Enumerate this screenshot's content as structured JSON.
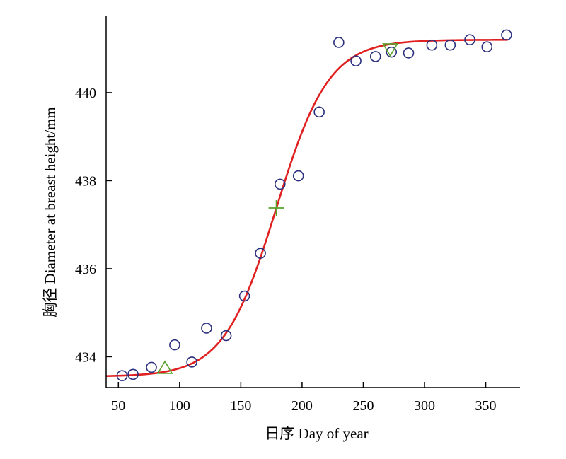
{
  "chart_data": {
    "type": "scatter",
    "xlabel": "日序 Day of year",
    "ylabel": "胸径 Diameter at breast height/mm",
    "xlim": [
      40,
      378
    ],
    "ylim": [
      433.3,
      441.75
    ],
    "xticks": [
      50,
      100,
      150,
      200,
      250,
      300,
      350
    ],
    "yticks": [
      434,
      436,
      438,
      440
    ],
    "grid": false,
    "legend": "none",
    "series": [
      {
        "kind": "scatter",
        "marker": "circle",
        "color": "#2b2f7e",
        "points": [
          {
            "x": 53,
            "y": 433.57
          },
          {
            "x": 62,
            "y": 433.6
          },
          {
            "x": 77,
            "y": 433.76
          },
          {
            "x": 96,
            "y": 434.27
          },
          {
            "x": 110,
            "y": 433.88
          },
          {
            "x": 122,
            "y": 434.65
          },
          {
            "x": 138,
            "y": 434.48
          },
          {
            "x": 153,
            "y": 435.38
          },
          {
            "x": 166,
            "y": 436.35
          },
          {
            "x": 182,
            "y": 437.92
          },
          {
            "x": 197,
            "y": 438.11
          },
          {
            "x": 214,
            "y": 439.56
          },
          {
            "x": 230,
            "y": 441.14
          },
          {
            "x": 244,
            "y": 440.72
          },
          {
            "x": 260,
            "y": 440.82
          },
          {
            "x": 273,
            "y": 440.92
          },
          {
            "x": 287,
            "y": 440.9
          },
          {
            "x": 306,
            "y": 441.08
          },
          {
            "x": 321,
            "y": 441.08
          },
          {
            "x": 337,
            "y": 441.2
          },
          {
            "x": 351,
            "y": 441.04
          },
          {
            "x": 367,
            "y": 441.31
          }
        ]
      },
      {
        "kind": "curve",
        "color": "#e02020",
        "model": "logistic",
        "params": {
          "lower": 433.55,
          "upper": 441.2,
          "midpoint": 179,
          "scale": 21.5
        },
        "x_range": [
          40,
          368
        ]
      },
      {
        "kind": "marker",
        "marker": "triangle-up",
        "color": "#5aa02c",
        "points": [
          {
            "x": 88,
            "y": 433.75
          }
        ]
      },
      {
        "kind": "marker",
        "marker": "plus",
        "color": "#5aa02c",
        "points": [
          {
            "x": 179,
            "y": 437.38
          }
        ]
      },
      {
        "kind": "marker",
        "marker": "triangle-down",
        "color": "#5aa02c",
        "points": [
          {
            "x": 272,
            "y": 440.98
          }
        ]
      }
    ]
  }
}
